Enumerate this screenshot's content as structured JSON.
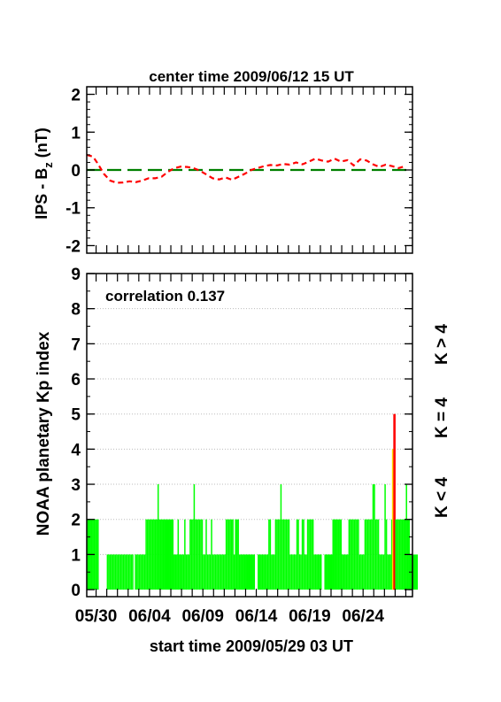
{
  "chart_data": [
    {
      "type": "line",
      "title": "center time 2009/06/12 15 UT",
      "ylabel_main": "IPS - B",
      "ylabel_sub": "z",
      "ylabel_unit": " (nT)",
      "ylim": [
        -2.2,
        2.2
      ],
      "yticks": [
        "2",
        "1",
        "0",
        "-1",
        "-2"
      ],
      "ytick_values": [
        2,
        1,
        0,
        -1,
        -2
      ],
      "xlim_days": [
        0,
        30.5
      ],
      "reference_line": {
        "y": 0,
        "color": "#008000",
        "style": "long-dash"
      },
      "series": [
        {
          "color": "#ff0000",
          "style": "dashed",
          "x_days": [
            0.0,
            0.6,
            1.0,
            1.6,
            2.2,
            2.8,
            3.4,
            4.0,
            4.6,
            5.2,
            5.8,
            6.4,
            7.0,
            7.6,
            8.2,
            8.8,
            9.4,
            10.0,
            10.6,
            11.2,
            11.8,
            12.4,
            13.0,
            13.6,
            14.2,
            14.8,
            15.4,
            16.0,
            16.6,
            17.2,
            17.8,
            18.4,
            19.0,
            19.6,
            20.2,
            20.8,
            21.4,
            22.0,
            22.6,
            23.2,
            23.8,
            24.4,
            25.0,
            25.6,
            26.2,
            26.8,
            27.4,
            28.0,
            28.6,
            29.2,
            29.8
          ],
          "y": [
            0.4,
            0.35,
            0.18,
            -0.1,
            -0.28,
            -0.34,
            -0.33,
            -0.3,
            -0.32,
            -0.28,
            -0.22,
            -0.22,
            -0.18,
            -0.05,
            0.05,
            0.09,
            0.08,
            0.05,
            -0.02,
            -0.12,
            -0.22,
            -0.25,
            -0.2,
            -0.26,
            -0.18,
            -0.1,
            0.0,
            0.05,
            0.1,
            0.13,
            0.12,
            0.16,
            0.14,
            0.2,
            0.15,
            0.22,
            0.3,
            0.25,
            0.22,
            0.3,
            0.22,
            0.26,
            0.12,
            0.28,
            0.25,
            0.15,
            0.08,
            0.14,
            0.1,
            0.05,
            0.1
          ]
        }
      ]
    },
    {
      "type": "bar",
      "annotation": "correlation 0.137",
      "ylabel": "NOAA planetary Kp index",
      "xlabel": "start time 2009/05/29 03 UT",
      "ylim": [
        -0.2,
        9
      ],
      "yticks": [
        "0",
        "1",
        "2",
        "3",
        "4",
        "5",
        "6",
        "7",
        "8",
        "9"
      ],
      "grid_y": [
        1,
        2,
        3,
        4,
        5,
        6,
        7,
        8
      ],
      "xlim_days": [
        0,
        30.5
      ],
      "xtick_labels": [
        "05/30",
        "06/04",
        "06/09",
        "06/14",
        "06/19",
        "06/24"
      ],
      "xtick_days": [
        0.875,
        5.875,
        10.875,
        15.875,
        20.875,
        25.875
      ],
      "bar_width_days": 0.125,
      "kp_values_3h": [
        2,
        2,
        2,
        2,
        2,
        2,
        2,
        2,
        2,
        0,
        0,
        0,
        0,
        0,
        0,
        1,
        1,
        1,
        1,
        1,
        1,
        1,
        1,
        1,
        1,
        1,
        1,
        1,
        1,
        1,
        1,
        1,
        1,
        1,
        1,
        0,
        1,
        1,
        1,
        1,
        1,
        1,
        1,
        1,
        2,
        2,
        2,
        2,
        2,
        2,
        2,
        2,
        2,
        3,
        2,
        2,
        2,
        2,
        2,
        2,
        2,
        2,
        2,
        2,
        2,
        1,
        1,
        1,
        2,
        1,
        1,
        1,
        1,
        2,
        1,
        1,
        1,
        2,
        2,
        2,
        3,
        2,
        2,
        2,
        2,
        2,
        2,
        1,
        1,
        2,
        1,
        1,
        1,
        2,
        1,
        1,
        1,
        1,
        1,
        1,
        1,
        1,
        1,
        1,
        2,
        2,
        2,
        2,
        2,
        2,
        1,
        2,
        2,
        2,
        1,
        1,
        1,
        1,
        1,
        1,
        1,
        1,
        1,
        1,
        1,
        1,
        0,
        0,
        1,
        1,
        1,
        1,
        1,
        1,
        1,
        1,
        2,
        2,
        1,
        1,
        1,
        2,
        2,
        2,
        2,
        3,
        2,
        2,
        2,
        2,
        2,
        2,
        1,
        1,
        1,
        1,
        1,
        2,
        2,
        1,
        1,
        2,
        2,
        1,
        1,
        2,
        2,
        2,
        2,
        2,
        1,
        1,
        1,
        1,
        1,
        1,
        0,
        0,
        1,
        1,
        1,
        1,
        1,
        1,
        2,
        2,
        2,
        2,
        2,
        2,
        2,
        1,
        1,
        1,
        1,
        1,
        2,
        2,
        2,
        2,
        2,
        2,
        2,
        2,
        1,
        1,
        1,
        1,
        2,
        2,
        2,
        2,
        2,
        2,
        3,
        3,
        2,
        2,
        2,
        1,
        1,
        1,
        1,
        3,
        2,
        1,
        1,
        1,
        2,
        4,
        5,
        2,
        2,
        2,
        2,
        2,
        2,
        2,
        2,
        3,
        2,
        2,
        1,
        1,
        1,
        1,
        1,
        1
      ],
      "color_rules": [
        {
          "label": "K < 4",
          "color": "#00ff00"
        },
        {
          "label": "K = 4",
          "color": "#ffd700"
        },
        {
          "label": "K > 4",
          "color": "#ff0000"
        }
      ]
    }
  ]
}
